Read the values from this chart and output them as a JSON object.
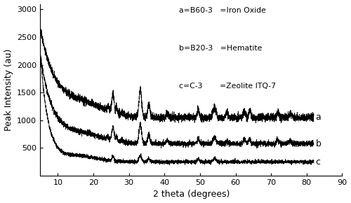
{
  "xlabel": "2 theta (degrees)",
  "ylabel": "Peak Intensity (au)",
  "xlim": [
    5,
    90
  ],
  "ylim": [
    0,
    3100
  ],
  "yticks": [
    500,
    1000,
    1500,
    2000,
    2500,
    3000
  ],
  "xticks": [
    10,
    20,
    30,
    40,
    50,
    60,
    70,
    80,
    90
  ],
  "legend_a": "a=B60-3   =Iron Oxide",
  "legend_b": "b=B20-3   =Hematite",
  "legend_c": "c=C-3       =Zeolite ITQ-7",
  "curve_labels": [
    "a",
    "b",
    "c"
  ],
  "line_color": "#000000",
  "background_color": "#ffffff",
  "label_fontsize": 9,
  "tick_fontsize": 8,
  "seed": 42
}
